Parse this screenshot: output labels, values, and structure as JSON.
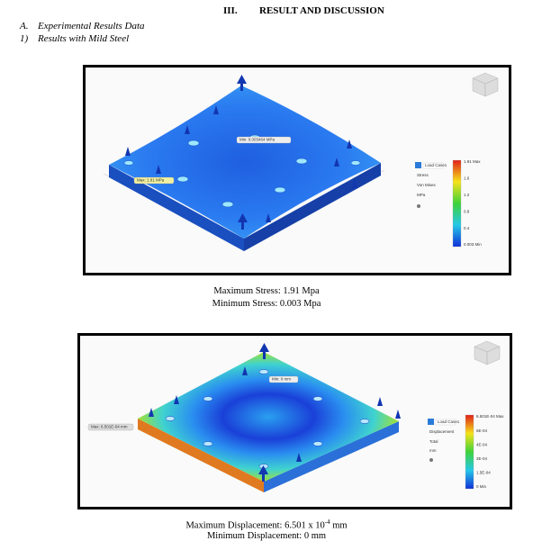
{
  "header": {
    "section_number": "III.",
    "section_title": "RESULT AND DISCUSSION"
  },
  "subsection": {
    "label": "A.",
    "title": "Experimental Results Data"
  },
  "subsubsection": {
    "label": "1)",
    "title": "Results with Mild Steel"
  },
  "figures": [
    {
      "min_probe": "Min: 0.003464 MPa",
      "max_probe": "Max: 1.91 MPa",
      "panel": {
        "load_case": "Load Case1",
        "result": "Stress",
        "type": "Von Mises",
        "unit": "MPa"
      },
      "legend": [
        "1.91 Max",
        "1.6",
        "1.2",
        "0.8",
        "0.4",
        "0.003 Min"
      ],
      "caption": [
        {
          "text": "Maximum Stress: 1.91 Mpa"
        },
        {
          "text": "Minimum Stress: 0.003 Mpa"
        }
      ]
    },
    {
      "min_probe": "Min: 0 mm",
      "max_probe": "Max: 6.501E-04 mm",
      "panel": {
        "load_case": "Load Case1",
        "result": "Displacement",
        "type": "Total",
        "unit": "mm"
      },
      "legend": [
        "6.501E-04 Max",
        "5E-04",
        "4E-04",
        "3E-04",
        "1.5E-04",
        "0 Min"
      ],
      "caption": [
        {
          "text": "Maximum Displacement: 6.501 x 10",
          "superscript": "-4",
          "suffix": " mm"
        },
        {
          "text": "Minimum Displacement: 0 mm"
        }
      ]
    }
  ]
}
